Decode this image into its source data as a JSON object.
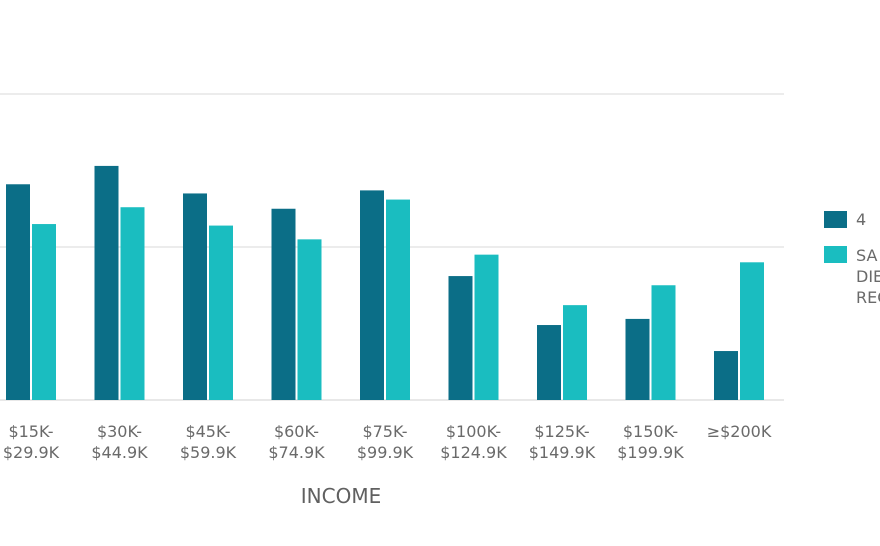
{
  "chart_data": {
    "type": "bar",
    "xlabel": "INCOME",
    "ylabel": "",
    "ylim": [
      0,
      2
    ],
    "grid": true,
    "legend_placement": "right",
    "categories": [
      [
        "$15K-",
        "$29.9K"
      ],
      [
        "$30K-",
        "$44.9K"
      ],
      [
        "$45K-",
        "$59.9K"
      ],
      [
        "$60K-",
        "$74.9K"
      ],
      [
        "$75K-",
        "$99.9K"
      ],
      [
        "$100K-",
        "$124.9K"
      ],
      [
        "$125K-",
        "$149.9K"
      ],
      [
        "$150K-",
        "$199.9K"
      ],
      [
        "≥$200K"
      ]
    ],
    "series": [
      {
        "name": "4",
        "color": "#0b6e87",
        "values": [
          1.41,
          1.53,
          1.35,
          1.25,
          1.37,
          0.81,
          0.49,
          0.53,
          0.32
        ]
      },
      {
        "name_lines": [
          "SA",
          "DIE",
          "REC"
        ],
        "color": "#1abdc0",
        "values": [
          1.15,
          1.26,
          1.14,
          1.05,
          1.31,
          0.95,
          0.62,
          0.75,
          0.9
        ]
      }
    ]
  }
}
